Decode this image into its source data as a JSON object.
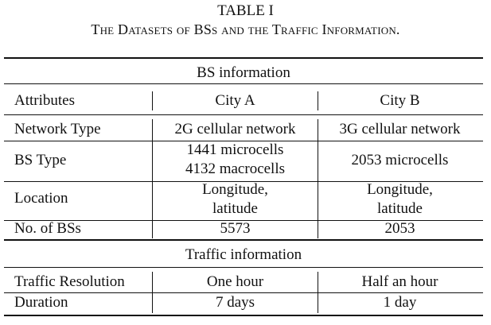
{
  "table": {
    "label": "TABLE I",
    "title": "The Datasets of BSs and the Traffic Information.",
    "sections": {
      "bs": "BS information",
      "traffic": "Traffic information"
    },
    "header": {
      "col1": "Attributes",
      "col2": "City A",
      "col3": "City B"
    },
    "rows": {
      "network_type": {
        "attr": "Network Type",
        "a": "2G cellular network",
        "b": "3G cellular network"
      },
      "bs_type": {
        "attr": "BS Type",
        "a1": "1441 microcells",
        "a2": "4132 macrocells",
        "b": "2053 microcells"
      },
      "location": {
        "attr": "Location",
        "a1": "Longitude,",
        "a2": "latitude",
        "b1": "Longitude,",
        "b2": "latitude"
      },
      "no_bs": {
        "attr": "No. of BSs",
        "a": "5573",
        "b": "2053"
      },
      "resolution": {
        "attr": "Traffic Resolution",
        "a": "One hour",
        "b": "Half an hour"
      },
      "duration": {
        "attr": "Duration",
        "a": "7 days",
        "b": "1 day"
      }
    }
  }
}
